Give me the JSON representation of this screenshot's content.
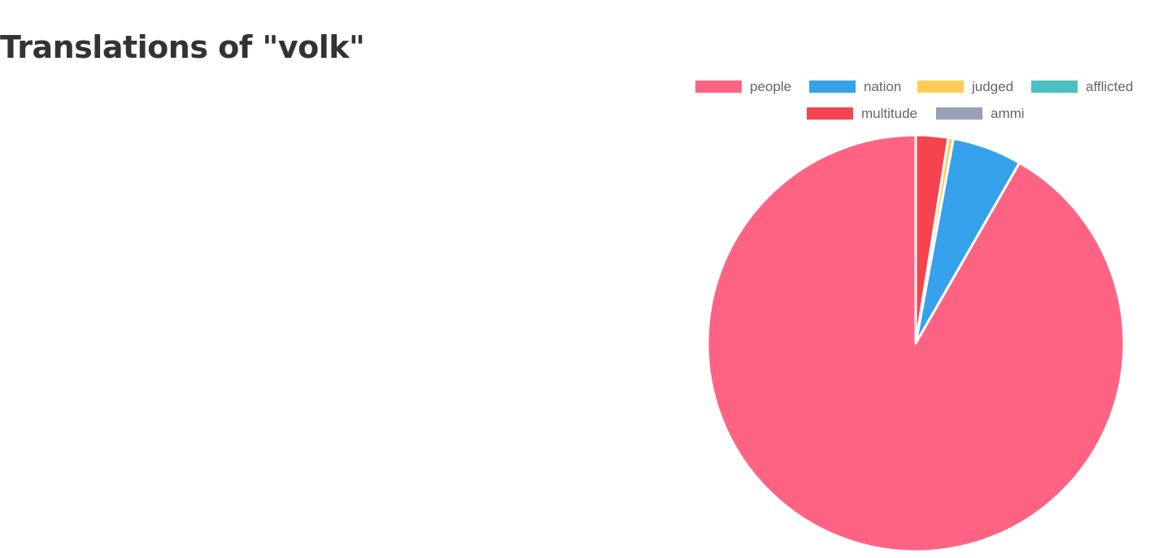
{
  "title": "Translations of \"volk\"",
  "chart_data": {
    "type": "pie",
    "title": "Translations of \"volk\"",
    "legend_position": "top",
    "slices": [
      {
        "label": "people",
        "value": 91.7,
        "color": "#ff6384"
      },
      {
        "label": "nation",
        "value": 5.4,
        "color": "#36a2eb"
      },
      {
        "label": "judged",
        "value": 0.4,
        "color": "#ffcd56"
      },
      {
        "label": "afflicted",
        "value": 0.0,
        "color": "#4bc0c0"
      },
      {
        "label": "multitude",
        "value": 2.5,
        "color": "#f5444f"
      },
      {
        "label": "ammi",
        "value": 0.0,
        "color": "#97a0b5"
      }
    ]
  }
}
